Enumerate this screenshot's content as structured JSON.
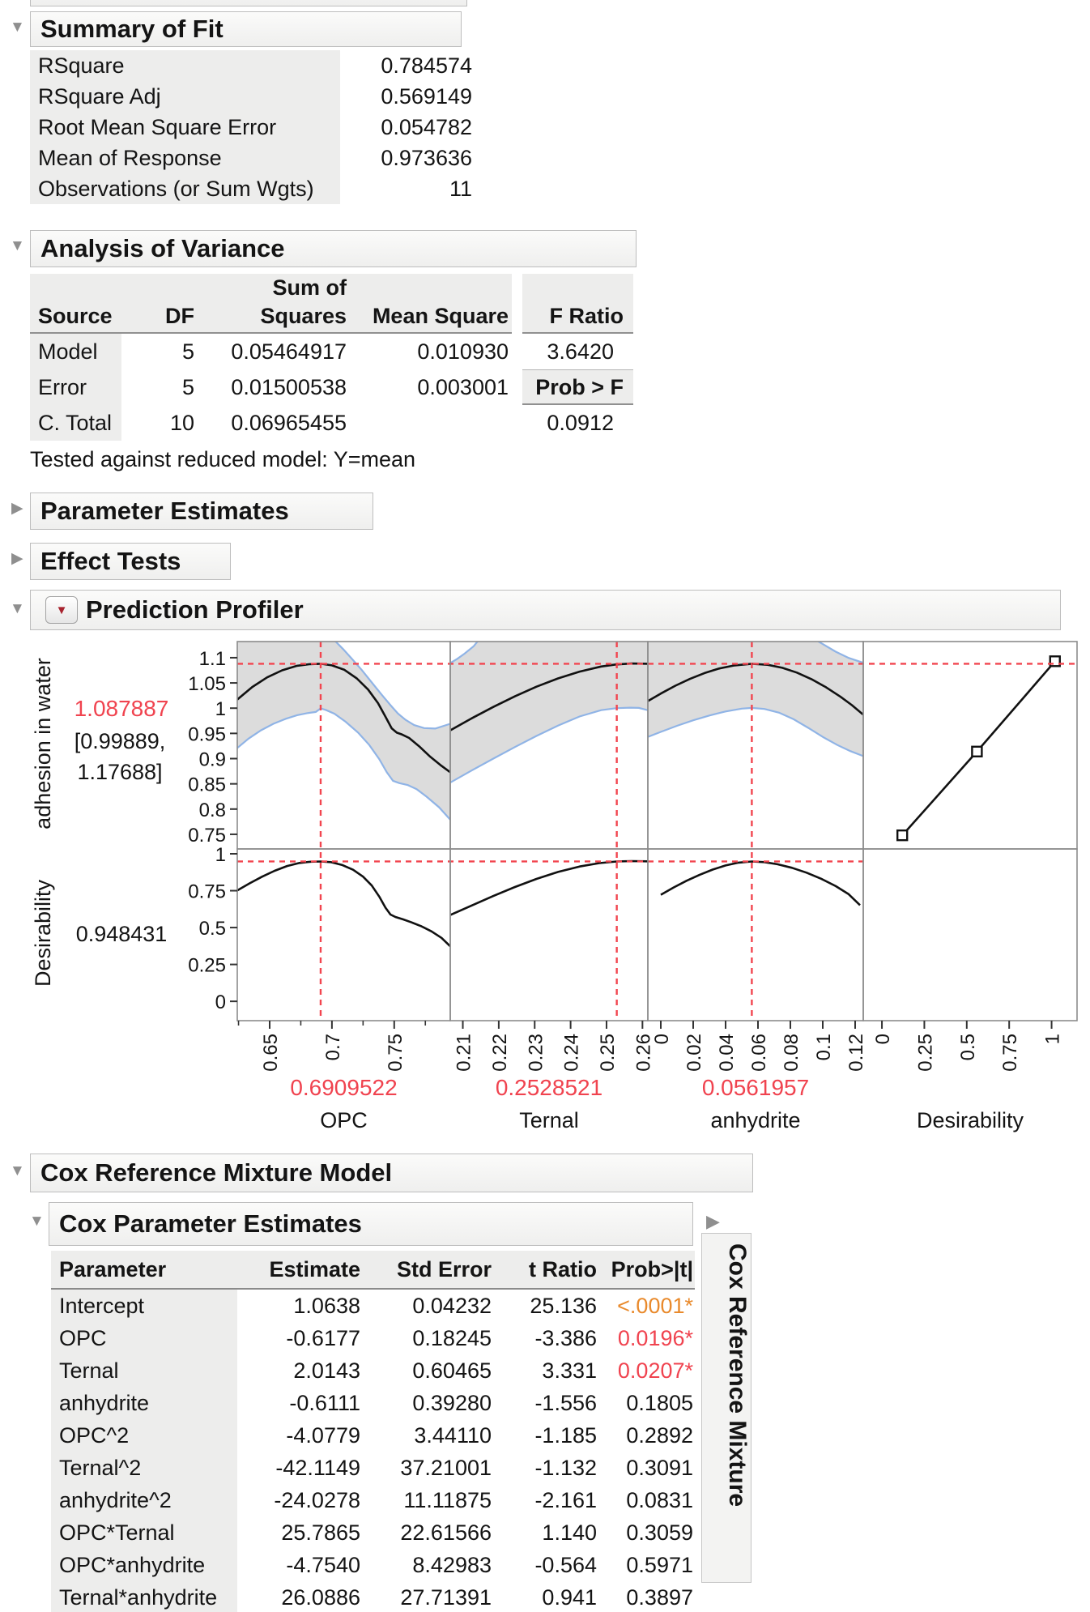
{
  "sections": {
    "summary_of_fit": {
      "title": "Summary of Fit",
      "rows": [
        {
          "label": "RSquare",
          "value": "0.784574"
        },
        {
          "label": "RSquare Adj",
          "value": "0.569149"
        },
        {
          "label": "Root Mean Square Error",
          "value": "0.054782"
        },
        {
          "label": "Mean of Response",
          "value": "0.973636"
        },
        {
          "label": "Observations (or Sum Wgts)",
          "value": "11"
        }
      ]
    },
    "anova": {
      "title": "Analysis of Variance",
      "headers": {
        "source": "Source",
        "df": "DF",
        "sum_of": "Sum of",
        "squares": "Squares",
        "mean_square": "Mean Square",
        "f_ratio": "F Ratio",
        "prob_f": "Prob > F"
      },
      "rows": [
        {
          "source": "Model",
          "df": "5",
          "ss": "0.05464917",
          "ms": "0.010930",
          "f": "3.6420"
        },
        {
          "source": "Error",
          "df": "5",
          "ss": "0.01500538",
          "ms": "0.003001",
          "f": ""
        },
        {
          "source": "C. Total",
          "df": "10",
          "ss": "0.06965455",
          "ms": "",
          "f": "0.0912"
        }
      ],
      "footnote": "Tested against reduced model: Y=mean"
    },
    "parameter_estimates": {
      "title": "Parameter Estimates"
    },
    "effect_tests": {
      "title": "Effect Tests"
    },
    "profiler": {
      "title": "Prediction Profiler"
    },
    "cox_model": {
      "title": "Cox Reference Mixture Model"
    },
    "cox_estimates": {
      "title": "Cox Parameter Estimates",
      "side_tab": "Cox Reference Mixture",
      "columns": {
        "parameter": "Parameter",
        "estimate": "Estimate",
        "std_error": "Std Error",
        "t_ratio": "t Ratio",
        "prob": "Prob>|t|"
      },
      "rows": [
        {
          "parameter": "Intercept",
          "estimate": "1.0638",
          "std_error": "0.04232",
          "t_ratio": "25.136",
          "prob": "<.0001*",
          "prob_class": "orange"
        },
        {
          "parameter": "OPC",
          "estimate": "-0.6177",
          "std_error": "0.18245",
          "t_ratio": "-3.386",
          "prob": "0.0196*",
          "prob_class": "red"
        },
        {
          "parameter": "Ternal",
          "estimate": "2.0143",
          "std_error": "0.60465",
          "t_ratio": "3.331",
          "prob": "0.0207*",
          "prob_class": "red"
        },
        {
          "parameter": "anhydrite",
          "estimate": "-0.6111",
          "std_error": "0.39280",
          "t_ratio": "-1.556",
          "prob": "0.1805",
          "prob_class": ""
        },
        {
          "parameter": "OPC^2",
          "estimate": "-4.0779",
          "std_error": "3.44110",
          "t_ratio": "-1.185",
          "prob": "0.2892",
          "prob_class": ""
        },
        {
          "parameter": "Ternal^2",
          "estimate": "-42.1149",
          "std_error": "37.21001",
          "t_ratio": "-1.132",
          "prob": "0.3091",
          "prob_class": ""
        },
        {
          "parameter": "anhydrite^2",
          "estimate": "-24.0278",
          "std_error": "11.11875",
          "t_ratio": "-2.161",
          "prob": "0.0831",
          "prob_class": ""
        },
        {
          "parameter": "OPC*Ternal",
          "estimate": "25.7865",
          "std_error": "22.61566",
          "t_ratio": "1.140",
          "prob": "0.3059",
          "prob_class": ""
        },
        {
          "parameter": "OPC*anhydrite",
          "estimate": "-4.7540",
          "std_error": "8.42983",
          "t_ratio": "-0.564",
          "prob": "0.5971",
          "prob_class": ""
        },
        {
          "parameter": "Ternal*anhydrite",
          "estimate": "26.0886",
          "std_error": "27.71391",
          "t_ratio": "0.941",
          "prob": "0.3897",
          "prob_class": ""
        }
      ]
    }
  },
  "colors": {
    "red": "#f0434f",
    "orange": "#e98a2c",
    "band_edge": "#90b4e6",
    "band_fill": "#dcdcdc",
    "curve": "#111111",
    "panel_border": "#8c8c8c",
    "crosshair": "#f2454f"
  },
  "chart_data": {
    "type": "line",
    "title": "Prediction Profiler",
    "response": {
      "label": "adhesion in water",
      "value": "1.087887",
      "ci_line1": "[0.99889,",
      "ci_line2": "1.17688]",
      "crosshair": 1.087887,
      "ylim": [
        0.721,
        1.132
      ],
      "yticks": [
        {
          "v": 1.1,
          "l": "1.1"
        },
        {
          "v": 1.05,
          "l": "1.05"
        },
        {
          "v": 1,
          "l": "1"
        },
        {
          "v": 0.95,
          "l": "0.95"
        },
        {
          "v": 0.9,
          "l": "0.9"
        },
        {
          "v": 0.85,
          "l": "0.85"
        },
        {
          "v": 0.8,
          "l": "0.8"
        },
        {
          "v": 0.75,
          "l": "0.75"
        }
      ]
    },
    "desirability": {
      "label": "Desirability",
      "value": "0.948431",
      "crosshair": 0.948431,
      "ylim": [
        -0.131,
        1.033
      ],
      "yticks": [
        {
          "v": 1,
          "l": "1"
        },
        {
          "v": 0.75,
          "l": "0.75"
        },
        {
          "v": 0.5,
          "l": "0.5"
        },
        {
          "v": 0.25,
          "l": "0.25"
        },
        {
          "v": 0,
          "l": "0"
        }
      ]
    },
    "factors": [
      {
        "name": "OPC",
        "value_label": "0.6909522",
        "value": 0.6909522,
        "xlim": [
          0.624,
          0.795
        ],
        "xticks": [
          {
            "v": 0.65,
            "l": "0.65"
          },
          {
            "v": 0.7,
            "l": "0.7"
          },
          {
            "v": 0.75,
            "l": "0.75"
          }
        ],
        "minor_xticks": [
          0.625,
          0.675,
          0.725,
          0.775
        ],
        "mean": [
          [
            0.624,
            1.017
          ],
          [
            0.636,
            1.042
          ],
          [
            0.648,
            1.061
          ],
          [
            0.66,
            1.075
          ],
          [
            0.672,
            1.084
          ],
          [
            0.682,
            1.0872
          ],
          [
            0.691,
            1.088
          ],
          [
            0.7,
            1.0848
          ],
          [
            0.71,
            1.076
          ],
          [
            0.72,
            1.059
          ],
          [
            0.729,
            1.037
          ],
          [
            0.737,
            1.01
          ],
          [
            0.743,
            0.983
          ],
          [
            0.748,
            0.96
          ],
          [
            0.752,
            0.9515
          ],
          [
            0.7565,
            0.9475
          ],
          [
            0.762,
            0.941
          ],
          [
            0.77,
            0.9245
          ],
          [
            0.779,
            0.9035
          ],
          [
            0.787,
            0.8875
          ],
          [
            0.795,
            0.873
          ]
        ],
        "upper": [
          [
            0.624,
            1.14
          ],
          [
            0.698,
            1.14
          ],
          [
            0.703,
            1.132
          ],
          [
            0.709,
            1.117
          ],
          [
            0.716,
            1.098
          ],
          [
            0.724,
            1.0755
          ],
          [
            0.732,
            1.051
          ],
          [
            0.74,
            1.0265
          ],
          [
            0.747,
            1.006
          ],
          [
            0.753,
            0.9895
          ],
          [
            0.759,
            0.977
          ],
          [
            0.766,
            0.9665
          ],
          [
            0.774,
            0.9605
          ],
          [
            0.783,
            0.9595
          ],
          [
            0.795,
            0.969
          ]
        ],
        "lower": [
          [
            0.624,
            0.921
          ],
          [
            0.633,
            0.9395
          ],
          [
            0.643,
            0.956
          ],
          [
            0.653,
            0.969
          ],
          [
            0.663,
            0.979
          ],
          [
            0.672,
            0.986
          ],
          [
            0.68,
            0.99
          ],
          [
            0.687,
            0.9925
          ],
          [
            0.691,
            0.9995
          ],
          [
            0.6955,
            0.996
          ],
          [
            0.702,
            0.989
          ],
          [
            0.711,
            0.973
          ],
          [
            0.721,
            0.9515
          ],
          [
            0.73,
            0.927
          ],
          [
            0.738,
            0.899
          ],
          [
            0.744,
            0.873
          ],
          [
            0.749,
            0.856
          ],
          [
            0.754,
            0.8515
          ],
          [
            0.761,
            0.8475
          ],
          [
            0.768,
            0.8395
          ],
          [
            0.776,
            0.8245
          ],
          [
            0.786,
            0.8035
          ],
          [
            0.795,
            0.779
          ]
        ],
        "desirability_curve": [
          [
            0.624,
            0.752
          ],
          [
            0.634,
            0.8
          ],
          [
            0.644,
            0.845
          ],
          [
            0.654,
            0.885
          ],
          [
            0.664,
            0.917
          ],
          [
            0.674,
            0.938
          ],
          [
            0.683,
            0.946
          ],
          [
            0.691,
            0.948
          ],
          [
            0.699,
            0.9435
          ],
          [
            0.708,
            0.925
          ],
          [
            0.717,
            0.892
          ],
          [
            0.725,
            0.845
          ],
          [
            0.732,
            0.785
          ],
          [
            0.738,
            0.71
          ],
          [
            0.743,
            0.635
          ],
          [
            0.747,
            0.588
          ],
          [
            0.751,
            0.572
          ],
          [
            0.757,
            0.556
          ],
          [
            0.764,
            0.535
          ],
          [
            0.772,
            0.508
          ],
          [
            0.78,
            0.474
          ],
          [
            0.788,
            0.43
          ],
          [
            0.795,
            0.373
          ]
        ]
      },
      {
        "name": "Ternal",
        "value_label": "0.2528521",
        "value": 0.2528521,
        "xlim": [
          0.2065,
          0.2615
        ],
        "xticks": [
          {
            "v": 0.21,
            "l": "0.21"
          },
          {
            "v": 0.22,
            "l": "0.22"
          },
          {
            "v": 0.23,
            "l": "0.23"
          },
          {
            "v": 0.24,
            "l": "0.24"
          },
          {
            "v": 0.25,
            "l": "0.25"
          },
          {
            "v": 0.26,
            "l": "0.26"
          }
        ],
        "minor_xticks": [],
        "mean": [
          [
            0.2065,
            0.956
          ],
          [
            0.2125,
            0.98
          ],
          [
            0.2185,
            1.0025
          ],
          [
            0.2245,
            1.0235
          ],
          [
            0.2305,
            1.0425
          ],
          [
            0.2365,
            1.059
          ],
          [
            0.2425,
            1.0725
          ],
          [
            0.2485,
            1.0825
          ],
          [
            0.2528,
            1.0868
          ],
          [
            0.257,
            1.0885
          ],
          [
            0.2615,
            1.088
          ]
        ],
        "upper": [
          [
            0.2065,
            1.0895
          ],
          [
            0.2085,
            1.098
          ],
          [
            0.2105,
            1.108
          ],
          [
            0.213,
            1.1225
          ],
          [
            0.215,
            1.14
          ],
          [
            0.2615,
            1.14
          ]
        ],
        "lower": [
          [
            0.2065,
            0.8525
          ],
          [
            0.2125,
            0.8765
          ],
          [
            0.2185,
            0.9
          ],
          [
            0.2245,
            0.923
          ],
          [
            0.2305,
            0.945
          ],
          [
            0.2365,
            0.9655
          ],
          [
            0.2425,
            0.9835
          ],
          [
            0.2485,
            0.996
          ],
          [
            0.2528,
            1.0
          ],
          [
            0.2565,
            1.001
          ],
          [
            0.259,
            1.0005
          ],
          [
            0.2615,
            0.996
          ]
        ],
        "desirability_curve": [
          [
            0.2065,
            0.585
          ],
          [
            0.2125,
            0.65
          ],
          [
            0.2185,
            0.714
          ],
          [
            0.2245,
            0.775
          ],
          [
            0.2305,
            0.83
          ],
          [
            0.2365,
            0.877
          ],
          [
            0.2425,
            0.914
          ],
          [
            0.248,
            0.937
          ],
          [
            0.2528,
            0.948
          ],
          [
            0.257,
            0.9505
          ],
          [
            0.2615,
            0.949
          ]
        ]
      },
      {
        "name": "anhydrite",
        "value_label": "0.0561957",
        "value": 0.0561957,
        "xlim": [
          -0.008,
          0.125
        ],
        "xticks": [
          {
            "v": 0,
            "l": "0"
          },
          {
            "v": 0.02,
            "l": "0.02"
          },
          {
            "v": 0.04,
            "l": "0.04"
          },
          {
            "v": 0.06,
            "l": "0.06"
          },
          {
            "v": 0.08,
            "l": "0.08"
          },
          {
            "v": 0.1,
            "l": "0.1"
          },
          {
            "v": 0.12,
            "l": "0.12"
          }
        ],
        "minor_xticks": [],
        "mean": [
          [
            -0.008,
            1.014
          ],
          [
            0.0,
            1.029
          ],
          [
            0.009,
            1.0445
          ],
          [
            0.018,
            1.058
          ],
          [
            0.027,
            1.0695
          ],
          [
            0.036,
            1.0785
          ],
          [
            0.045,
            1.0845
          ],
          [
            0.0562,
            1.088
          ],
          [
            0.066,
            1.086
          ],
          [
            0.075,
            1.08
          ],
          [
            0.084,
            1.0705
          ],
          [
            0.093,
            1.0575
          ],
          [
            0.102,
            1.0415
          ],
          [
            0.111,
            1.0225
          ],
          [
            0.118,
            1.006
          ],
          [
            0.125,
            0.987
          ]
        ],
        "upper": [
          [
            -0.008,
            1.14
          ],
          [
            0.093,
            1.14
          ],
          [
            0.1,
            1.127
          ],
          [
            0.108,
            1.112
          ],
          [
            0.116,
            1.0995
          ],
          [
            0.125,
            1.09
          ]
        ],
        "lower": [
          [
            -0.008,
            0.943
          ],
          [
            0.0,
            0.953
          ],
          [
            0.01,
            0.965
          ],
          [
            0.02,
            0.976
          ],
          [
            0.03,
            0.9855
          ],
          [
            0.04,
            0.9935
          ],
          [
            0.05,
            0.999
          ],
          [
            0.0562,
            1.0005
          ],
          [
            0.064,
            0.9985
          ],
          [
            0.073,
            0.991
          ],
          [
            0.082,
            0.978
          ],
          [
            0.091,
            0.961
          ],
          [
            0.1,
            0.943
          ],
          [
            0.109,
            0.927
          ],
          [
            0.117,
            0.915
          ],
          [
            0.125,
            0.905
          ]
        ],
        "desirability_curve": [
          [
            0.0,
            0.722
          ],
          [
            0.008,
            0.772
          ],
          [
            0.016,
            0.818
          ],
          [
            0.024,
            0.858
          ],
          [
            0.032,
            0.893
          ],
          [
            0.04,
            0.921
          ],
          [
            0.048,
            0.94
          ],
          [
            0.0562,
            0.948
          ],
          [
            0.064,
            0.9435
          ],
          [
            0.072,
            0.929
          ],
          [
            0.081,
            0.905
          ],
          [
            0.09,
            0.872
          ],
          [
            0.099,
            0.831
          ],
          [
            0.108,
            0.781
          ],
          [
            0.116,
            0.726
          ],
          [
            0.123,
            0.652
          ]
        ]
      },
      {
        "name": "Desirability",
        "xlim": [
          -0.11,
          1.15
        ],
        "xticks": [
          {
            "v": 0,
            "l": "0"
          },
          {
            "v": 0.25,
            "l": "0.25"
          },
          {
            "v": 0.5,
            "l": "0.5"
          },
          {
            "v": 0.75,
            "l": "0.75"
          },
          {
            "v": 1,
            "l": "1"
          }
        ],
        "minor_xticks": [],
        "trace": [
          [
            0.12,
            0.748
          ],
          [
            0.56,
            0.914
          ],
          [
            1.02,
            1.093
          ]
        ]
      }
    ]
  }
}
